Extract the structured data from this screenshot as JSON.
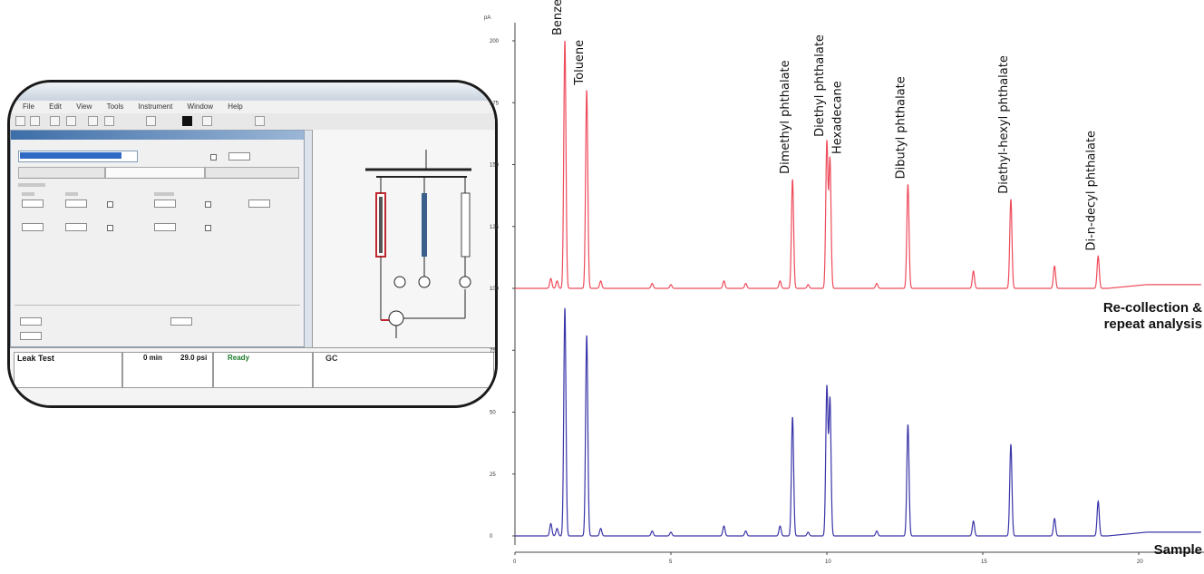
{
  "chart_data": {
    "type": "line",
    "xlim": [
      0,
      22
    ],
    "ylim": [
      0,
      200
    ],
    "y_unit_label": "pA",
    "x_ticks": [
      0,
      5,
      10,
      15,
      20
    ],
    "y_ticks": [
      0,
      25,
      50,
      75,
      100,
      125,
      150,
      175,
      200
    ],
    "grid": false,
    "traces": [
      {
        "name": "Re-collection & repeat analysis",
        "color": "#ee4b5b",
        "offset": 100
      },
      {
        "name": "Sample",
        "color": "#3a35a8",
        "offset": 0
      }
    ],
    "peaks": [
      {
        "label": "Benzene",
        "rt": 1.6,
        "a": 100,
        "b": 92
      },
      {
        "label": "Toluene",
        "rt": 2.3,
        "a": 80,
        "b": 81
      },
      {
        "label": "Dimethyl phthalate",
        "rt": 8.9,
        "a": 44,
        "b": 48
      },
      {
        "label": "Diethyl phthalate",
        "rt": 10.0,
        "a": 59,
        "b": 60
      },
      {
        "label": "Hexadecane",
        "rt": 10.1,
        "a": 52,
        "b": 55
      },
      {
        "label": "Dibutyl phthalate",
        "rt": 12.6,
        "a": 42,
        "b": 45
      },
      {
        "label": "Diethyl-hexyl phthalate",
        "rt": 15.9,
        "a": 36,
        "b": 37
      },
      {
        "label": "Di-n-decyl phthalate",
        "rt": 18.7,
        "a": 13,
        "b": 14
      }
    ],
    "minor_peaks": [
      {
        "rt": 1.15,
        "a": 4,
        "b": 5
      },
      {
        "rt": 1.35,
        "a": 3,
        "b": 3
      },
      {
        "rt": 2.75,
        "a": 3,
        "b": 3
      },
      {
        "rt": 4.4,
        "a": 2,
        "b": 2
      },
      {
        "rt": 5.0,
        "a": 1.5,
        "b": 1.5
      },
      {
        "rt": 6.7,
        "a": 3,
        "b": 4
      },
      {
        "rt": 7.4,
        "a": 2,
        "b": 2
      },
      {
        "rt": 8.5,
        "a": 3,
        "b": 4
      },
      {
        "rt": 9.4,
        "a": 1.5,
        "b": 1.5
      },
      {
        "rt": 11.6,
        "a": 2,
        "b": 2
      },
      {
        "rt": 14.7,
        "a": 7,
        "b": 6
      },
      {
        "rt": 17.3,
        "a": 9,
        "b": 7
      }
    ],
    "labels_lines": [
      {
        "text": "Re-collection &",
        "trace": 0
      },
      {
        "text": "repeat analysis",
        "trace": 0
      },
      {
        "text": "Sample",
        "trace": 1
      }
    ]
  },
  "inset": {
    "menu": [
      "File",
      "Edit",
      "View",
      "Tools",
      "Instrument",
      "Window",
      "Help"
    ],
    "status_left": "Leak Test",
    "status_time": "0 min",
    "status_pressure": "29.0 psi",
    "status_ready": "Ready",
    "status_gc": "GC"
  }
}
